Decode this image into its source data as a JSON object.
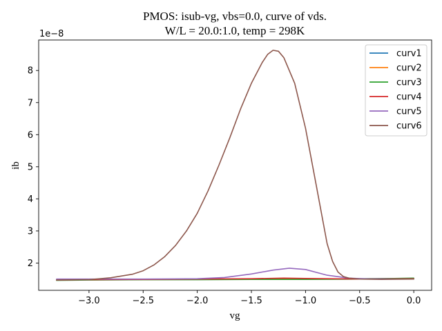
{
  "chart_data": {
    "type": "line",
    "title": [
      "PMOS: isub-vg, vbs=0.0, curve of vds.",
      "W/L = 20.0:1.0, temp = 298K"
    ],
    "xlabel": "vg",
    "ylabel": "ib",
    "y_offset_label": "1e−8",
    "xlim": [
      -3.465,
      0.165
    ],
    "ylim": [
      1.15,
      8.95
    ],
    "xticks": [
      -3.0,
      -2.5,
      -2.0,
      -1.5,
      -1.0,
      -0.5,
      0.0
    ],
    "xtick_labels": [
      "−3.0",
      "−2.5",
      "−2.0",
      "−1.5",
      "−1.0",
      "−0.5",
      "0.0"
    ],
    "yticks": [
      2,
      3,
      4,
      5,
      6,
      7,
      8
    ],
    "ytick_labels": [
      "2",
      "3",
      "4",
      "5",
      "6",
      "7",
      "8"
    ],
    "grid": false,
    "legend_position": "top-right",
    "series": [
      {
        "name": "curv1",
        "color": "#1f77b4",
        "x": [
          -3.3,
          -3.0,
          -2.5,
          -2.0,
          -1.5,
          -1.0,
          -0.5,
          0.0
        ],
        "y": [
          1.48,
          1.49,
          1.49,
          1.5,
          1.5,
          1.5,
          1.51,
          1.52
        ]
      },
      {
        "name": "curv2",
        "color": "#ff7f0e",
        "x": [
          -3.3,
          -3.0,
          -2.5,
          -2.0,
          -1.5,
          -1.0,
          -0.5,
          0.0
        ],
        "y": [
          1.47,
          1.48,
          1.48,
          1.49,
          1.5,
          1.5,
          1.5,
          1.51
        ]
      },
      {
        "name": "curv3",
        "color": "#2ca02c",
        "x": [
          -3.3,
          -3.0,
          -2.5,
          -2.0,
          -1.5,
          -1.0,
          -0.5,
          0.0
        ],
        "y": [
          1.46,
          1.47,
          1.48,
          1.48,
          1.49,
          1.49,
          1.5,
          1.53
        ]
      },
      {
        "name": "curv4",
        "color": "#d62728",
        "x": [
          -3.3,
          -3.0,
          -2.5,
          -2.0,
          -1.5,
          -1.2,
          -1.0,
          -0.5,
          0.0
        ],
        "y": [
          1.47,
          1.48,
          1.49,
          1.5,
          1.51,
          1.53,
          1.52,
          1.5,
          1.51
        ]
      },
      {
        "name": "curv5",
        "color": "#9467bd",
        "x": [
          -3.3,
          -3.0,
          -2.5,
          -2.0,
          -1.75,
          -1.5,
          -1.3,
          -1.15,
          -1.0,
          -0.8,
          -0.6,
          -0.4,
          0.0
        ],
        "y": [
          1.5,
          1.5,
          1.5,
          1.51,
          1.55,
          1.66,
          1.78,
          1.84,
          1.8,
          1.62,
          1.53,
          1.5,
          1.5
        ]
      },
      {
        "name": "curv6",
        "color": "#8c564b",
        "x": [
          -3.3,
          -3.0,
          -2.8,
          -2.6,
          -2.5,
          -2.4,
          -2.3,
          -2.2,
          -2.1,
          -2.0,
          -1.9,
          -1.8,
          -1.7,
          -1.6,
          -1.5,
          -1.4,
          -1.35,
          -1.3,
          -1.25,
          -1.2,
          -1.1,
          -1.0,
          -0.9,
          -0.85,
          -0.8,
          -0.75,
          -0.7,
          -0.65,
          -0.6,
          -0.5,
          -0.3,
          0.0
        ],
        "y": [
          1.47,
          1.48,
          1.54,
          1.65,
          1.76,
          1.94,
          2.2,
          2.55,
          3.0,
          3.55,
          4.25,
          5.05,
          5.9,
          6.8,
          7.6,
          8.25,
          8.5,
          8.63,
          8.6,
          8.4,
          7.6,
          6.2,
          4.4,
          3.5,
          2.6,
          2.05,
          1.72,
          1.58,
          1.53,
          1.5,
          1.49,
          1.5
        ]
      }
    ]
  }
}
